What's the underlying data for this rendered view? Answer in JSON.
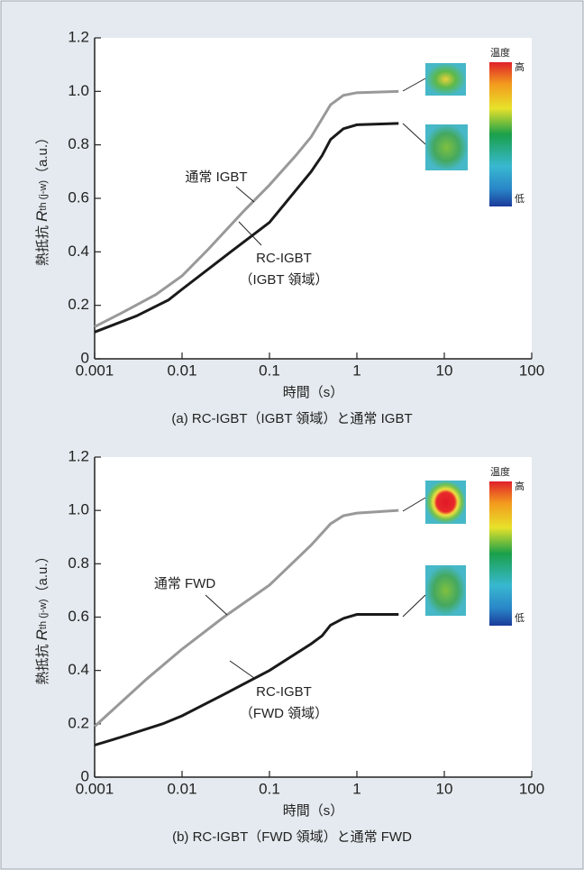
{
  "chart_data": [
    {
      "type": "line",
      "xlog": true,
      "caption": "(a) RC-IGBT（IGBT 領域）と通常 IGBT",
      "xlabel": "時間（s）",
      "ylabel": [
        "熱抵抗 ",
        "R",
        "th (j-w)",
        "（a.u.）"
      ],
      "xlim": [
        0.001,
        100
      ],
      "xticks": [
        0.001,
        0.01,
        0.1,
        1,
        10,
        100
      ],
      "ylim": [
        0,
        1.2
      ],
      "yticks": [
        0,
        0.2,
        0.4,
        0.6,
        0.8,
        {
          "value": 1,
          "label": "1.0"
        },
        1.2
      ],
      "colorbar": {
        "title": "温度",
        "high": "高",
        "low": "低"
      },
      "series": [
        {
          "name": "通常 IGBT",
          "color": "#999999",
          "x": [
            0.001,
            0.002,
            0.005,
            0.01,
            0.02,
            0.05,
            0.1,
            0.2,
            0.3,
            0.5,
            0.7,
            1,
            3
          ],
          "values": [
            0.12,
            0.17,
            0.24,
            0.31,
            0.41,
            0.55,
            0.65,
            0.76,
            0.83,
            0.95,
            0.985,
            0.995,
            1.0
          ]
        },
        {
          "name": "RC-IGBT",
          "annotation": "（IGBT 領域）",
          "color": "#1a1a1a",
          "x": [
            0.001,
            0.003,
            0.007,
            0.01,
            0.03,
            0.1,
            0.3,
            0.4,
            0.5,
            0.7,
            1,
            3
          ],
          "values": [
            0.1,
            0.16,
            0.22,
            0.26,
            0.38,
            0.51,
            0.7,
            0.76,
            0.82,
            0.86,
            0.875,
            0.88
          ]
        }
      ]
    },
    {
      "type": "line",
      "xlog": true,
      "caption": "(b) RC-IGBT（FWD 領域）と通常 FWD",
      "xlabel": "時間（s）",
      "ylabel": [
        "熱抵抗 ",
        "R",
        "th (j-w)",
        "（a.u.）"
      ],
      "xlim": [
        0.001,
        100
      ],
      "xticks": [
        0.001,
        0.01,
        0.1,
        1,
        10,
        100
      ],
      "ylim": [
        0,
        1.2
      ],
      "yticks": [
        0,
        0.2,
        0.4,
        0.6,
        0.8,
        {
          "value": 1,
          "label": "1.0"
        },
        1.2
      ],
      "colorbar": {
        "title": "温度",
        "high": "高",
        "low": "低"
      },
      "series": [
        {
          "name": "通常 FWD",
          "color": "#999999",
          "x": [
            0.001,
            0.002,
            0.004,
            0.01,
            0.03,
            0.1,
            0.3,
            0.5,
            0.7,
            1,
            3
          ],
          "values": [
            0.19,
            0.28,
            0.37,
            0.48,
            0.6,
            0.72,
            0.87,
            0.95,
            0.98,
            0.99,
            1.0
          ]
        },
        {
          "name": "RC-IGBT",
          "annotation": "（FWD 領域）",
          "color": "#1a1a1a",
          "x": [
            0.001,
            0.002,
            0.006,
            0.01,
            0.03,
            0.1,
            0.3,
            0.4,
            0.5,
            0.7,
            1,
            3
          ],
          "values": [
            0.12,
            0.15,
            0.2,
            0.23,
            0.31,
            0.4,
            0.5,
            0.53,
            0.57,
            0.595,
            0.61,
            0.61
          ]
        }
      ]
    }
  ]
}
